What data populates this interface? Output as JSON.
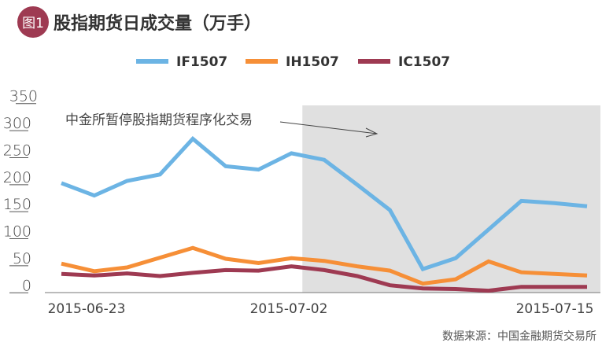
{
  "header": {
    "badge": "图1",
    "title": "股指期货日成交量（万手）"
  },
  "source": "数据来源：中国金融期货交易所",
  "colors": {
    "badge": "#9e3a52",
    "IF1507": "#6cb4e4",
    "IH1507": "#f68f37",
    "IC1507": "#9e3a52",
    "shade": "#e0e0e0"
  },
  "chart_data": {
    "type": "line",
    "title": "股指期货日成交量（万手）",
    "x": [
      "2015-06-23",
      "2015-06-24",
      "2015-06-25",
      "2015-06-26",
      "2015-06-29",
      "2015-06-30",
      "2015-07-01",
      "2015-07-02",
      "2015-07-03",
      "2015-07-06",
      "2015-07-07",
      "2015-07-08",
      "2015-07-09",
      "2015-07-10",
      "2015-07-13",
      "2015-07-14",
      "2015-07-15"
    ],
    "x_tick_labels": [
      "2015-06-23",
      "2015-07-02",
      "2015-07-15"
    ],
    "y_ticks": [
      0,
      50,
      100,
      150,
      200,
      250,
      300,
      350
    ],
    "ylim": [
      0,
      350
    ],
    "legend_position": "top",
    "grid": false,
    "series": [
      {
        "name": "IF1507",
        "values": [
          203,
          180,
          207,
          219,
          285,
          234,
          228,
          258,
          246,
          200,
          153,
          44,
          64,
          117,
          170,
          166,
          160
        ]
      },
      {
        "name": "IH1507",
        "values": [
          54,
          40,
          47,
          65,
          83,
          63,
          55,
          64,
          59,
          49,
          41,
          17,
          25,
          58,
          38,
          35,
          32
        ]
      },
      {
        "name": "IC1507",
        "values": [
          35,
          32,
          36,
          31,
          37,
          42,
          41,
          49,
          42,
          31,
          14,
          8,
          7,
          4,
          11,
          11,
          11
        ]
      }
    ],
    "shaded_region": {
      "from": "2015-07-02",
      "to": "2015-07-15"
    },
    "annotation": "中金所暂停股指期货程序化交易"
  }
}
